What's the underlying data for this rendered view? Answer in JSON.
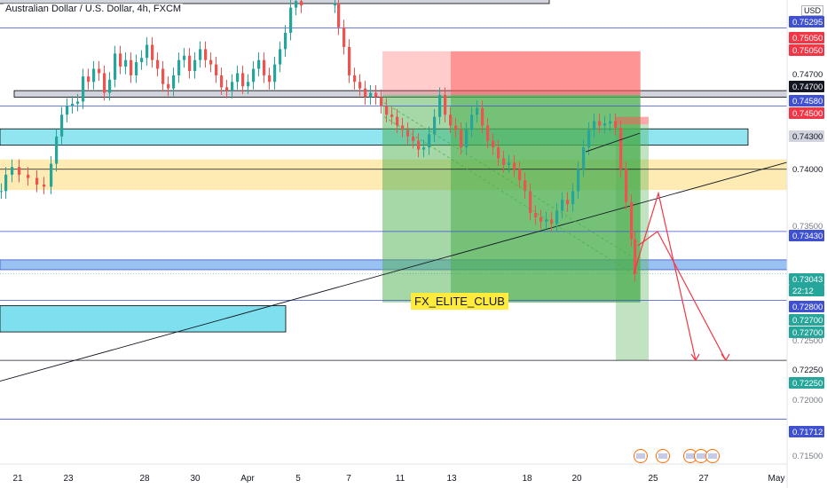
{
  "chart_data": {
    "type": "candlestick",
    "title": "Australian Dollar / U.S. Dollar, 4h, FXCM",
    "currency": "USD",
    "watermark": "FX_ELITE_CLUB",
    "ylim": [
      0.713,
      0.7555
    ],
    "price_axis_labels": [
      "0.75295",
      "0.75050",
      "0.75050",
      "0.74700",
      "0.74700",
      "0.74580",
      "0.74500",
      "0.74300",
      "0.74000",
      "0.73500",
      "0.73430",
      "0.73043",
      "22:12",
      "0.72800",
      "0.72700",
      "0.72700",
      "0.72500",
      "0.72250",
      "0.72250",
      "0.72000",
      "0.71712",
      "0.71500"
    ],
    "x_tick_labels": [
      "21",
      "23",
      "28",
      "30",
      "Apr",
      "5",
      "7",
      "11",
      "13",
      "18",
      "20",
      "25",
      "27",
      "May"
    ],
    "annotations": {
      "horizontal_lines": [
        0.75295,
        0.7458,
        0.74,
        0.7343,
        0.728,
        0.7225,
        0.71712
      ],
      "zones": [
        "0.7430 resistance",
        "0.7400 support",
        "0.7310 support",
        "0.7470 range high"
      ],
      "positions": [
        "short position 1",
        "short position 2"
      ],
      "projection_arrows": 2
    },
    "colors": {
      "up": "#26a69a",
      "down": "#ef5350",
      "blue_zone": "#7ee0ef",
      "orange_zone": "#fde49a",
      "profit": "#4caf50",
      "loss": "#ff5252",
      "line": "#3f51d0"
    }
  }
}
